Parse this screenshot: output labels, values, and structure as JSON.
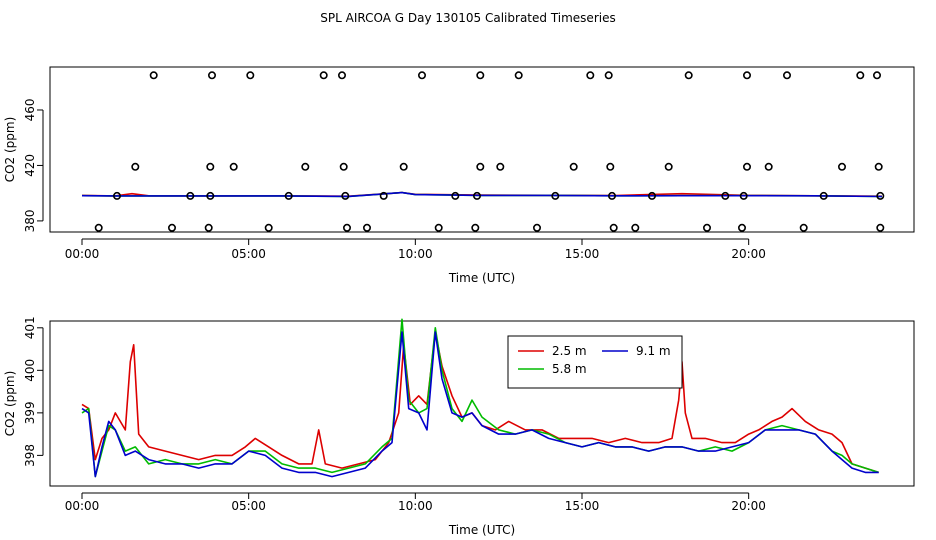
{
  "title": "SPL AIRCOA G  Day 130105  Calibrated Timeseries",
  "chart_data": [
    {
      "type": "scatter",
      "xlabel": "Time (UTC)",
      "ylabel": "CO2 (ppm)",
      "xlim": [
        -0.96,
        24.96
      ],
      "ylim": [
        372,
        491
      ],
      "xticks": [
        0,
        5,
        10,
        15,
        20
      ],
      "xtick_labels": [
        "00:00",
        "05:00",
        "10:00",
        "15:00",
        "20:00"
      ],
      "yticks": [
        380,
        420,
        460
      ],
      "ytick_labels": [
        "380",
        "420",
        "460"
      ],
      "grid": false,
      "markers": {
        "y485": [
          2.15,
          3.9,
          5.05,
          7.25,
          7.8,
          10.2,
          11.95,
          13.1,
          15.25,
          15.8,
          18.2,
          19.95,
          21.15,
          23.35,
          23.85
        ],
        "y419": [
          1.6,
          3.85,
          4.55,
          6.7,
          7.85,
          9.65,
          11.95,
          12.55,
          14.75,
          15.85,
          17.6,
          19.95,
          20.6,
          22.8,
          23.9
        ],
        "y398": [
          1.05,
          3.25,
          3.85,
          6.2,
          7.9,
          9.05,
          11.2,
          11.85,
          14.2,
          15.9,
          17.1,
          19.3,
          19.85,
          22.25,
          23.95
        ],
        "y375": [
          0.5,
          2.7,
          3.8,
          5.6,
          7.95,
          8.55,
          10.7,
          11.8,
          13.65,
          15.95,
          16.6,
          18.75,
          19.8,
          21.65,
          23.95
        ]
      },
      "series": [
        {
          "color": "#dd0000",
          "x": [
            0,
            1.0,
            1.5,
            2.0,
            4.0,
            6.0,
            8.0,
            9.6,
            10.0,
            12.0,
            14.0,
            16.0,
            18.0,
            20.0,
            22.0,
            24.0
          ],
          "values": [
            398.4,
            398.0,
            399.6,
            398.1,
            398.0,
            398.1,
            397.8,
            400.4,
            399.2,
            398.6,
            398.5,
            398.3,
            399.6,
            398.4,
            398.1,
            397.8
          ]
        },
        {
          "color": "#00bb00",
          "x": [
            0,
            1.0,
            2.0,
            4.0,
            6.0,
            8.0,
            9.6,
            10.0,
            12.0,
            14.0,
            16.0,
            18.0,
            20.0,
            22.0,
            24.0
          ],
          "values": [
            398.2,
            398.0,
            398.0,
            398.0,
            398.0,
            397.7,
            400.4,
            399.0,
            398.4,
            398.4,
            398.1,
            398.2,
            398.2,
            398.1,
            397.6
          ]
        },
        {
          "color": "#0000cc",
          "x": [
            0,
            1.0,
            2.0,
            4.0,
            6.0,
            8.0,
            9.6,
            10.0,
            12.0,
            14.0,
            16.0,
            18.0,
            20.0,
            22.0,
            24.0
          ],
          "values": [
            398.2,
            398.0,
            398.0,
            398.0,
            398.0,
            397.7,
            400.4,
            399.0,
            398.4,
            398.4,
            398.1,
            398.2,
            398.2,
            398.1,
            397.6
          ]
        }
      ]
    },
    {
      "type": "line",
      "xlabel": "Time (UTC)",
      "ylabel": "CO2 (ppm)",
      "xlim": [
        -0.96,
        24.96
      ],
      "ylim": [
        397.28,
        401.16
      ],
      "xticks": [
        0,
        5,
        10,
        15,
        20
      ],
      "xtick_labels": [
        "00:00",
        "05:00",
        "10:00",
        "15:00",
        "20:00"
      ],
      "yticks": [
        398,
        399,
        400,
        401
      ],
      "ytick_labels": [
        "398",
        "399",
        "400",
        "401"
      ],
      "grid": false,
      "legend_position": "top-center",
      "series": [
        {
          "name": "2.5 m",
          "color": "#dd0000",
          "x": [
            0.0,
            0.2,
            0.4,
            0.6,
            0.8,
            1.0,
            1.3,
            1.45,
            1.55,
            1.7,
            2.0,
            2.5,
            3.0,
            3.5,
            4.0,
            4.5,
            4.9,
            5.2,
            5.6,
            6.0,
            6.5,
            6.9,
            7.1,
            7.3,
            7.8,
            8.3,
            8.8,
            9.2,
            9.5,
            9.65,
            9.85,
            10.1,
            10.35,
            10.6,
            10.8,
            11.1,
            11.4,
            11.7,
            12.0,
            12.4,
            12.8,
            13.3,
            13.8,
            14.3,
            14.8,
            15.3,
            15.8,
            16.3,
            16.8,
            17.3,
            17.7,
            17.9,
            18.0,
            18.1,
            18.3,
            18.7,
            19.2,
            19.6,
            20.0,
            20.3,
            20.7,
            21.0,
            21.3,
            21.7,
            22.1,
            22.5,
            22.8,
            23.1,
            23.5,
            23.9
          ],
          "values": [
            399.2,
            399.1,
            397.9,
            398.4,
            398.6,
            399.0,
            398.6,
            400.2,
            400.6,
            398.5,
            398.2,
            398.1,
            398.0,
            397.9,
            398.0,
            398.0,
            398.2,
            398.4,
            398.2,
            398.0,
            397.8,
            397.8,
            398.6,
            397.8,
            397.7,
            397.8,
            397.9,
            398.3,
            399.0,
            400.6,
            399.2,
            399.4,
            399.2,
            400.9,
            400.1,
            399.4,
            398.9,
            399.0,
            398.7,
            398.6,
            398.8,
            398.6,
            398.6,
            398.4,
            398.4,
            398.4,
            398.3,
            398.4,
            398.3,
            398.3,
            398.4,
            399.3,
            400.2,
            399.0,
            398.4,
            398.4,
            398.3,
            398.3,
            398.5,
            398.6,
            398.8,
            398.9,
            399.1,
            398.8,
            398.6,
            398.5,
            398.3,
            397.8,
            397.7,
            397.6
          ]
        },
        {
          "name": "5.8 m",
          "color": "#00bb00",
          "x": [
            0.0,
            0.2,
            0.4,
            0.6,
            0.8,
            1.0,
            1.3,
            1.6,
            2.0,
            2.5,
            3.0,
            3.5,
            4.0,
            4.5,
            5.0,
            5.5,
            6.0,
            6.5,
            7.0,
            7.5,
            8.0,
            8.5,
            9.0,
            9.3,
            9.6,
            9.8,
            10.1,
            10.35,
            10.6,
            10.8,
            11.1,
            11.4,
            11.7,
            12.0,
            12.5,
            13.0,
            13.5,
            14.0,
            14.5,
            15.0,
            15.5,
            16.0,
            16.5,
            17.0,
            17.5,
            18.0,
            18.5,
            19.0,
            19.5,
            20.0,
            20.5,
            21.0,
            21.5,
            22.0,
            22.5,
            22.8,
            23.1,
            23.5,
            23.9
          ],
          "values": [
            399.0,
            399.1,
            397.5,
            398.1,
            398.7,
            398.6,
            398.1,
            398.2,
            397.8,
            397.9,
            397.8,
            397.8,
            397.9,
            397.8,
            398.1,
            398.1,
            397.8,
            397.7,
            397.7,
            397.6,
            397.7,
            397.8,
            398.2,
            398.4,
            401.2,
            399.3,
            399.0,
            399.1,
            401.0,
            400.0,
            399.1,
            398.8,
            399.3,
            398.9,
            398.6,
            398.5,
            398.6,
            398.5,
            398.3,
            398.2,
            398.3,
            398.2,
            398.2,
            398.1,
            398.2,
            398.2,
            398.1,
            398.2,
            398.1,
            398.3,
            398.6,
            398.7,
            398.6,
            398.5,
            398.1,
            398.0,
            397.8,
            397.7,
            397.6
          ]
        },
        {
          "name": "9.1 m",
          "color": "#0000cc",
          "x": [
            0.0,
            0.2,
            0.4,
            0.6,
            0.8,
            1.0,
            1.3,
            1.6,
            2.0,
            2.5,
            3.0,
            3.5,
            4.0,
            4.5,
            5.0,
            5.5,
            6.0,
            6.5,
            7.0,
            7.5,
            8.0,
            8.5,
            9.0,
            9.3,
            9.6,
            9.8,
            10.1,
            10.35,
            10.6,
            10.8,
            11.1,
            11.4,
            11.7,
            12.0,
            12.5,
            13.0,
            13.5,
            14.0,
            14.5,
            15.0,
            15.5,
            16.0,
            16.5,
            17.0,
            17.5,
            18.0,
            18.5,
            19.0,
            19.5,
            20.0,
            20.5,
            21.0,
            21.5,
            22.0,
            22.5,
            22.8,
            23.1,
            23.5,
            23.9
          ],
          "values": [
            399.1,
            399.0,
            397.5,
            398.2,
            398.8,
            398.6,
            398.0,
            398.1,
            397.9,
            397.8,
            397.8,
            397.7,
            397.8,
            397.8,
            398.1,
            398.0,
            397.7,
            397.6,
            397.6,
            397.5,
            397.6,
            397.7,
            398.1,
            398.3,
            400.9,
            399.1,
            399.0,
            398.6,
            400.9,
            399.8,
            399.0,
            398.9,
            399.0,
            398.7,
            398.5,
            398.5,
            398.6,
            398.4,
            398.3,
            398.2,
            398.3,
            398.2,
            398.2,
            398.1,
            398.2,
            398.2,
            398.1,
            398.1,
            398.2,
            398.3,
            398.6,
            398.6,
            398.6,
            398.5,
            398.1,
            397.9,
            397.7,
            397.6,
            397.6
          ]
        }
      ]
    }
  ]
}
